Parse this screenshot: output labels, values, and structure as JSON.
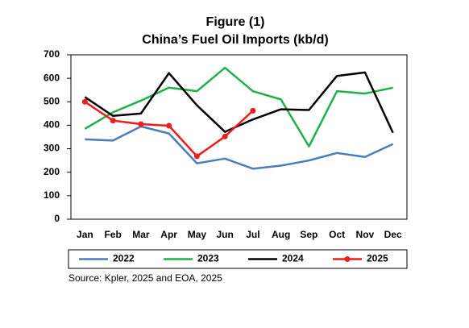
{
  "chart_data": {
    "type": "line",
    "title": "Figure (1)",
    "subtitle": "China’s Fuel Oil Imports (kb/d)",
    "source": "Source: Kpler, 2025 and EOA, 2025",
    "categories": [
      "Jan",
      "Feb",
      "Mar",
      "Apr",
      "May",
      "Jun",
      "Jul",
      "Aug",
      "Sep",
      "Oct",
      "Nov",
      "Dec"
    ],
    "series": [
      {
        "name": "2022",
        "color": "#4a7ebb",
        "values": [
          340,
          335,
          395,
          365,
          238,
          258,
          215,
          228,
          250,
          282,
          265,
          320
        ]
      },
      {
        "name": "2023",
        "color": "#1fb04a",
        "values": [
          385,
          455,
          505,
          560,
          545,
          645,
          545,
          510,
          310,
          545,
          535,
          560
        ]
      },
      {
        "name": "2024",
        "color": "#000000",
        "values": [
          520,
          440,
          450,
          622,
          485,
          372,
          425,
          468,
          465,
          610,
          625,
          368
        ]
      },
      {
        "name": "2025",
        "color": "#ee1c1c",
        "markers": true,
        "values": [
          500,
          420,
          405,
          398,
          268,
          352,
          462,
          null,
          null,
          null,
          null,
          null
        ]
      }
    ],
    "ylim": [
      0,
      700
    ],
    "yticks": [
      0,
      100,
      200,
      300,
      400,
      500,
      600,
      700
    ],
    "grid": false,
    "legend": "bottom"
  }
}
